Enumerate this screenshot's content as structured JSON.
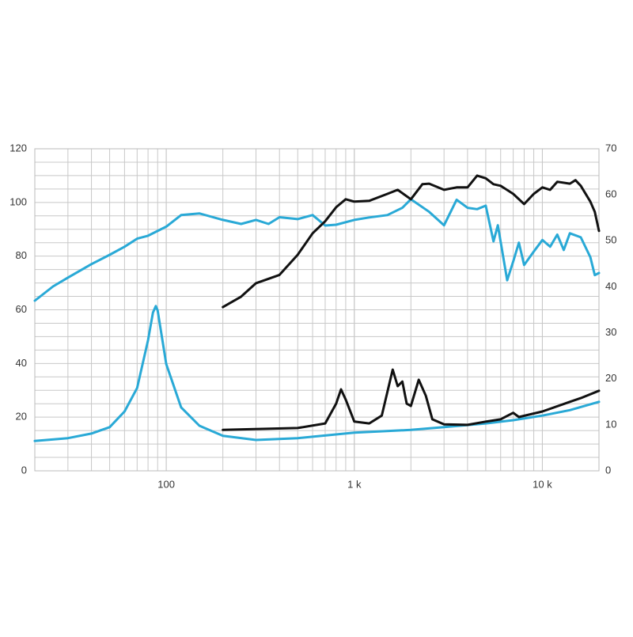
{
  "chart_data": {
    "type": "line",
    "xscale": "log",
    "xlim": [
      20,
      20000
    ],
    "xticks": [
      {
        "value": 100,
        "label": "100"
      },
      {
        "value": 1000,
        "label": "1 k"
      },
      {
        "value": 10000,
        "label": "10 k"
      }
    ],
    "ylim": [
      0,
      120
    ],
    "yticks": [
      0,
      20,
      40,
      60,
      80,
      100,
      120
    ],
    "y2lim": [
      0,
      70
    ],
    "y2ticks": [
      0,
      10,
      20,
      30,
      40,
      50,
      60,
      70
    ],
    "grid": true,
    "series": [
      {
        "color": "#29a9d6",
        "x": [
          20,
          25,
          30,
          40,
          50,
          60,
          70,
          80,
          100,
          120,
          150,
          200,
          250,
          300,
          350,
          400,
          500,
          600,
          700,
          800,
          1000,
          1200,
          1500,
          1800,
          2000,
          2500,
          3000,
          3500,
          4000,
          4500,
          5000,
          5500,
          5800,
          6500,
          7000,
          7500,
          8000,
          9000,
          10000,
          11000,
          12000,
          13000,
          14000,
          16000,
          18000,
          19000,
          20000
        ],
        "values": [
          63.4,
          68.7,
          72,
          77,
          80.5,
          83.5,
          86.5,
          87.6,
          91,
          95.3,
          95.9,
          93.5,
          92,
          93.5,
          92,
          94.5,
          93.8,
          95.3,
          91.4,
          91.7,
          93.5,
          94.4,
          95.3,
          98,
          101.2,
          96.5,
          91.5,
          101,
          98,
          97.5,
          98.8,
          85.5,
          91.5,
          71,
          78,
          85,
          76.7,
          81.7,
          86,
          83.5,
          88,
          82.3,
          88.5,
          87,
          79.6,
          72.9,
          73.7
        ]
      },
      {
        "color": "#111111",
        "x": [
          200,
          250,
          300,
          400,
          500,
          600,
          700,
          800,
          900,
          1000,
          1200,
          1500,
          1700,
          2000,
          2300,
          2500,
          3000,
          3500,
          4000,
          4500,
          5000,
          5500,
          6000,
          7000,
          8000,
          9000,
          10000,
          11000,
          12000,
          14000,
          15000,
          16000,
          18000,
          19000,
          20000
        ],
        "values": [
          61,
          64.9,
          69.9,
          73,
          80.5,
          88.5,
          93,
          98.2,
          101.2,
          100.3,
          100.6,
          103.2,
          104.7,
          101.2,
          106.8,
          107,
          104.7,
          105.6,
          105.6,
          110,
          109,
          106.8,
          106.2,
          103.2,
          99.4,
          103.2,
          105.6,
          104.7,
          107.7,
          107,
          108.3,
          106.2,
          100.3,
          96.5,
          89.4
        ]
      },
      {
        "color": "#29a9d6",
        "axis": "y2",
        "x": [
          20,
          30,
          40,
          50,
          60,
          70,
          80,
          85,
          88,
          90,
          100,
          120,
          150,
          200,
          300,
          500,
          1000,
          2000,
          3000,
          5000,
          7000,
          10000,
          14000,
          20000
        ],
        "values": [
          6.5,
          7.1,
          8.1,
          9.5,
          12.9,
          18,
          28.4,
          34.4,
          35.8,
          34.9,
          23.2,
          13.8,
          9.8,
          7.6,
          6.7,
          7.1,
          8.3,
          8.9,
          9.5,
          10.3,
          11,
          12,
          13.2,
          15
        ]
      },
      {
        "color": "#111111",
        "axis": "y2",
        "x": [
          200,
          500,
          700,
          800,
          850,
          900,
          1000,
          1200,
          1400,
          1600,
          1700,
          1800,
          1900,
          2000,
          2200,
          2400,
          2600,
          3000,
          4000,
          5000,
          6000,
          7000,
          7500,
          10000,
          14000,
          16000,
          20000
        ],
        "values": [
          8.9,
          9.3,
          10.3,
          14.6,
          17.7,
          15.5,
          10.7,
          10.3,
          12,
          22,
          18.4,
          19.4,
          14.6,
          14.1,
          19.8,
          16.3,
          11.2,
          10.1,
          10,
          10.7,
          11.2,
          12.6,
          11.7,
          12.9,
          15,
          15.8,
          17.4
        ]
      }
    ]
  }
}
